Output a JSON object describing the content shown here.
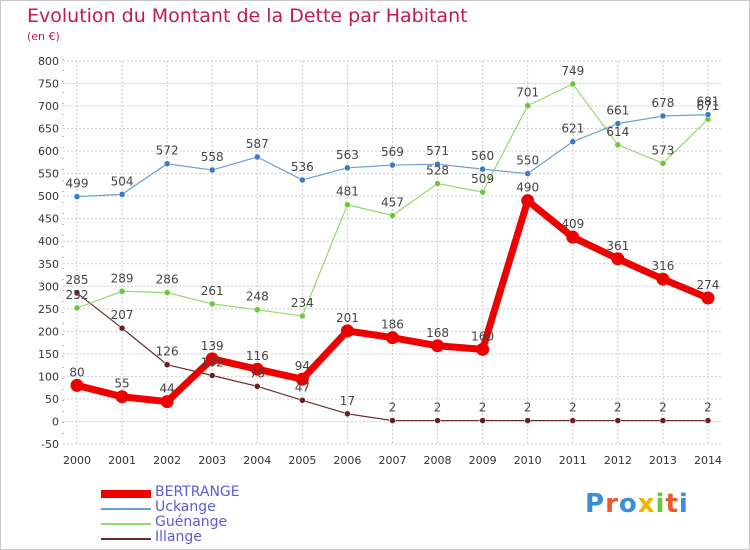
{
  "title": "Evolution du Montant de la Dette par Habitant",
  "subtitle": "(en €)",
  "logo": "Proxiti",
  "colors": {
    "title": "#c2185b",
    "legend_text": "#5b5bd6",
    "grid": "#cccccc",
    "axis_text": "#333333",
    "value_label": "#444444"
  },
  "chart_data": {
    "type": "line",
    "x": [
      "2000",
      "2001",
      "2002",
      "2003",
      "2004",
      "2005",
      "2006",
      "2007",
      "2008",
      "2009",
      "2010",
      "2011",
      "2012",
      "2013",
      "2014"
    ],
    "ylim": [
      -50,
      800
    ],
    "yticks": [
      "-50",
      "0",
      "50",
      "100",
      "150",
      "200",
      "250",
      "300",
      "350",
      "400",
      "450",
      "500",
      "550",
      "600",
      "650",
      "700",
      "750",
      "800"
    ],
    "grid": true,
    "legend_position": "bottom-left",
    "series": [
      {
        "name": "BERTRANGE",
        "color": "#ee0000",
        "marker": "#ee0000",
        "width": 7,
        "values": [
          80,
          55,
          44,
          139,
          116,
          94,
          201,
          186,
          168,
          160,
          490,
          409,
          361,
          316,
          274
        ],
        "labels": [
          "80",
          "55",
          "44",
          "139",
          "116",
          "94",
          "201",
          "186",
          "168",
          "160",
          "490",
          "409",
          "361",
          "316",
          "274"
        ]
      },
      {
        "name": "Uckange",
        "color": "#6a9ed6",
        "marker": "#3a7cc8",
        "width": 1.2,
        "values": [
          499,
          504,
          572,
          558,
          587,
          536,
          563,
          569,
          571,
          560,
          550,
          621,
          661,
          678,
          681
        ],
        "labels": [
          "499",
          "504",
          "572",
          "558",
          "587",
          "536",
          "563",
          "569",
          "571",
          "560",
          "550",
          "621",
          "661",
          "678",
          "681"
        ]
      },
      {
        "name": "Guénange",
        "color": "#8fdc6a",
        "marker": "#6cc83a",
        "width": 1.2,
        "values": [
          252,
          289,
          286,
          261,
          248,
          234,
          481,
          457,
          528,
          509,
          701,
          749,
          614,
          573,
          671
        ],
        "labels": [
          "252",
          "289",
          "286",
          "261",
          "248",
          "234",
          "481",
          "457",
          "528",
          "509",
          "701",
          "749",
          "614",
          "573",
          "671"
        ]
      },
      {
        "name": "Illange",
        "color": "#6b2a2a",
        "marker": "#6b1f1f",
        "width": 1.2,
        "values": [
          285,
          207,
          126,
          102,
          78,
          47,
          17,
          2,
          2,
          2,
          2,
          2,
          2,
          2,
          2
        ],
        "labels": [
          "285",
          "207",
          "126",
          "102",
          "78",
          "47",
          "17",
          "2",
          "2",
          "2",
          "2",
          "2",
          "2",
          "2",
          "2"
        ]
      }
    ]
  }
}
